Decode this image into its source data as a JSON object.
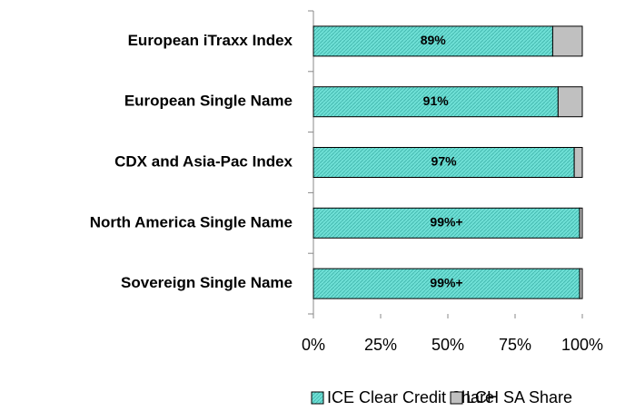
{
  "chart_data": {
    "type": "stacked-bar-horizontal",
    "categories": [
      "European iTraxx Index",
      "European Single Name",
      "CDX and Asia-Pac Index",
      "North America Single Name",
      "Sovereign Single Name"
    ],
    "series": [
      {
        "name": "ICE Clear Credit Share",
        "color": "#6fe0d6",
        "values": [
          89,
          91,
          97,
          99,
          99
        ],
        "value_labels": [
          "89%",
          "91%",
          "97%",
          "99%+",
          "99%+"
        ]
      },
      {
        "name": "LCH SA Share",
        "color": "#c0c0c0",
        "values": [
          11,
          9,
          3,
          1,
          1
        ]
      }
    ],
    "xlim": [
      0,
      100
    ],
    "xticks": [
      {
        "value": 0,
        "label": "0%"
      },
      {
        "value": 25,
        "label": "25%"
      },
      {
        "value": 50,
        "label": "50%"
      },
      {
        "value": 75,
        "label": "75%"
      },
      {
        "value": 100,
        "label": "100%"
      }
    ],
    "legend": "bottom"
  }
}
